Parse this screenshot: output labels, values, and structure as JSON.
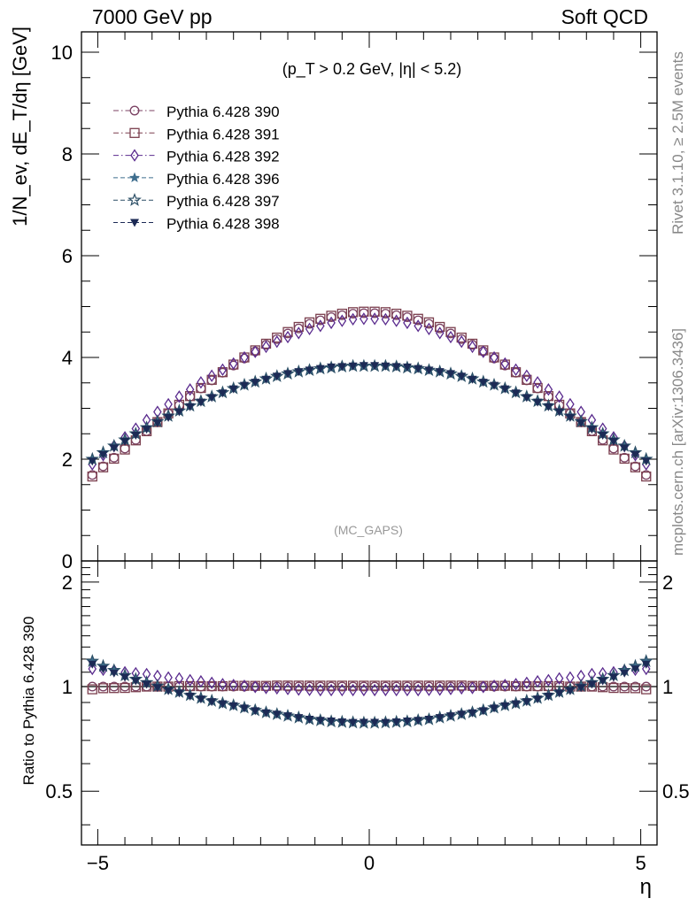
{
  "header": {
    "left": "7000 GeV pp",
    "right": "Soft QCD"
  },
  "side": {
    "rivet": "Rivet 3.1.10, ≥ 2.5M events",
    "mcplots": "mcplots.cern.ch [arXiv:1306.3436]"
  },
  "chart_data": {
    "type": "scatter",
    "title": "(p_T > 0.2 GeV, |η| < 5.2)",
    "watermark": "(MC_GAPS)",
    "xlabel": "η",
    "ylabel": "1/N_ev, dE_T/dη [GeV]",
    "ratio_ylabel": "Ratio to Pythia 6.428 390",
    "xlim": [
      -5.3,
      5.3
    ],
    "ylim": [
      0,
      10.4
    ],
    "ratio_ylim": [
      0.35,
      2.3
    ],
    "xticks": [
      {
        "v": -5,
        "label": "−5"
      },
      {
        "v": 0,
        "label": "0"
      },
      {
        "v": 5,
        "label": "5"
      }
    ],
    "yticks": [
      {
        "v": 0,
        "label": "0"
      },
      {
        "v": 2,
        "label": "2"
      },
      {
        "v": 4,
        "label": "4"
      },
      {
        "v": 6,
        "label": "6"
      },
      {
        "v": 8,
        "label": "8"
      },
      {
        "v": 10,
        "label": "10"
      }
    ],
    "ratio_yticks": [
      {
        "v": 0.5,
        "label": "0.5"
      },
      {
        "v": 1,
        "label": "1"
      },
      {
        "v": 2,
        "label": "2"
      }
    ],
    "legend_position": "top-left",
    "x": [
      -5.1,
      -4.9,
      -4.7,
      -4.5,
      -4.3,
      -4.1,
      -3.9,
      -3.7,
      -3.5,
      -3.3,
      -3.1,
      -2.9,
      -2.7,
      -2.5,
      -2.3,
      -2.1,
      -1.9,
      -1.7,
      -1.5,
      -1.3,
      -1.1,
      -0.9,
      -0.7,
      -0.5,
      -0.3,
      -0.1,
      0.1,
      0.3,
      0.5,
      0.7,
      0.9,
      1.1,
      1.3,
      1.5,
      1.7,
      1.9,
      2.1,
      2.3,
      2.5,
      2.7,
      2.9,
      3.1,
      3.3,
      3.5,
      3.7,
      3.9,
      4.1,
      4.3,
      4.5,
      4.7,
      4.9,
      5.1
    ],
    "series": [
      {
        "name": "Pythia 6.428 390",
        "color": "#7b4263",
        "marker": "circle-open",
        "dash": "dashdot",
        "values": [
          1.69,
          1.86,
          2.03,
          2.21,
          2.38,
          2.55,
          2.73,
          2.9,
          3.06,
          3.23,
          3.39,
          3.55,
          3.7,
          3.84,
          3.98,
          4.12,
          4.25,
          4.36,
          4.47,
          4.57,
          4.66,
          4.73,
          4.79,
          4.83,
          4.86,
          4.87,
          4.87,
          4.86,
          4.83,
          4.79,
          4.73,
          4.66,
          4.57,
          4.47,
          4.36,
          4.25,
          4.12,
          3.98,
          3.84,
          3.7,
          3.55,
          3.39,
          3.23,
          3.06,
          2.9,
          2.73,
          2.55,
          2.38,
          2.21,
          2.03,
          1.86,
          1.69
        ]
      },
      {
        "name": "Pythia 6.428 391",
        "color": "#7b3f4e",
        "marker": "square-open",
        "dash": "dashdot",
        "values": [
          1.66,
          1.84,
          2.01,
          2.19,
          2.37,
          2.55,
          2.73,
          2.9,
          3.07,
          3.24,
          3.4,
          3.56,
          3.71,
          3.86,
          4.0,
          4.14,
          4.27,
          4.39,
          4.5,
          4.6,
          4.69,
          4.76,
          4.82,
          4.86,
          4.89,
          4.9,
          4.9,
          4.89,
          4.86,
          4.82,
          4.76,
          4.69,
          4.6,
          4.5,
          4.39,
          4.27,
          4.14,
          4.0,
          3.86,
          3.71,
          3.56,
          3.4,
          3.24,
          3.07,
          2.9,
          2.73,
          2.55,
          2.37,
          2.19,
          2.01,
          1.84,
          1.66
        ]
      },
      {
        "name": "Pythia 6.428 392",
        "color": "#5a2b8e",
        "marker": "diamond-open",
        "dash": "dashdot",
        "values": [
          1.9,
          2.08,
          2.26,
          2.43,
          2.6,
          2.77,
          2.93,
          3.08,
          3.23,
          3.37,
          3.51,
          3.64,
          3.76,
          3.88,
          4.0,
          4.11,
          4.21,
          4.31,
          4.4,
          4.48,
          4.56,
          4.62,
          4.68,
          4.72,
          4.75,
          4.76,
          4.76,
          4.75,
          4.72,
          4.68,
          4.62,
          4.56,
          4.48,
          4.4,
          4.31,
          4.21,
          4.11,
          4.0,
          3.88,
          3.76,
          3.64,
          3.51,
          3.37,
          3.23,
          3.08,
          2.93,
          2.77,
          2.6,
          2.43,
          2.26,
          2.08,
          1.9
        ]
      },
      {
        "name": "Pythia 6.428 396",
        "color": "#3f6e8e",
        "marker": "star-filled",
        "dash": "dash",
        "values": [
          2.0,
          2.13,
          2.26,
          2.38,
          2.5,
          2.62,
          2.74,
          2.85,
          2.95,
          3.05,
          3.14,
          3.23,
          3.31,
          3.39,
          3.46,
          3.52,
          3.58,
          3.63,
          3.68,
          3.72,
          3.75,
          3.78,
          3.8,
          3.82,
          3.83,
          3.83,
          3.83,
          3.83,
          3.82,
          3.8,
          3.78,
          3.75,
          3.72,
          3.68,
          3.63,
          3.58,
          3.52,
          3.46,
          3.39,
          3.31,
          3.23,
          3.14,
          3.05,
          2.95,
          2.85,
          2.74,
          2.62,
          2.5,
          2.38,
          2.26,
          2.13,
          2.0
        ]
      },
      {
        "name": "Pythia 6.428 397",
        "color": "#2c4f66",
        "marker": "star-open",
        "dash": "dash",
        "values": [
          2.0,
          2.13,
          2.26,
          2.38,
          2.5,
          2.62,
          2.74,
          2.85,
          2.95,
          3.05,
          3.14,
          3.23,
          3.31,
          3.39,
          3.46,
          3.52,
          3.58,
          3.63,
          3.68,
          3.72,
          3.75,
          3.78,
          3.8,
          3.82,
          3.83,
          3.83,
          3.83,
          3.83,
          3.82,
          3.8,
          3.78,
          3.75,
          3.72,
          3.68,
          3.63,
          3.58,
          3.52,
          3.46,
          3.39,
          3.31,
          3.23,
          3.14,
          3.05,
          2.95,
          2.85,
          2.74,
          2.62,
          2.5,
          2.38,
          2.26,
          2.13,
          2.0
        ]
      },
      {
        "name": "Pythia 6.428 398",
        "color": "#1c2a55",
        "marker": "triangle-down-filled",
        "dash": "dash",
        "values": [
          1.96,
          2.09,
          2.22,
          2.35,
          2.47,
          2.59,
          2.71,
          2.82,
          2.93,
          3.03,
          3.12,
          3.21,
          3.3,
          3.38,
          3.45,
          3.51,
          3.57,
          3.63,
          3.68,
          3.72,
          3.75,
          3.78,
          3.81,
          3.82,
          3.83,
          3.84,
          3.84,
          3.83,
          3.82,
          3.81,
          3.78,
          3.75,
          3.72,
          3.68,
          3.63,
          3.57,
          3.51,
          3.45,
          3.38,
          3.3,
          3.21,
          3.12,
          3.03,
          2.93,
          2.82,
          2.71,
          2.59,
          2.47,
          2.35,
          2.22,
          2.09,
          1.96
        ]
      }
    ]
  }
}
